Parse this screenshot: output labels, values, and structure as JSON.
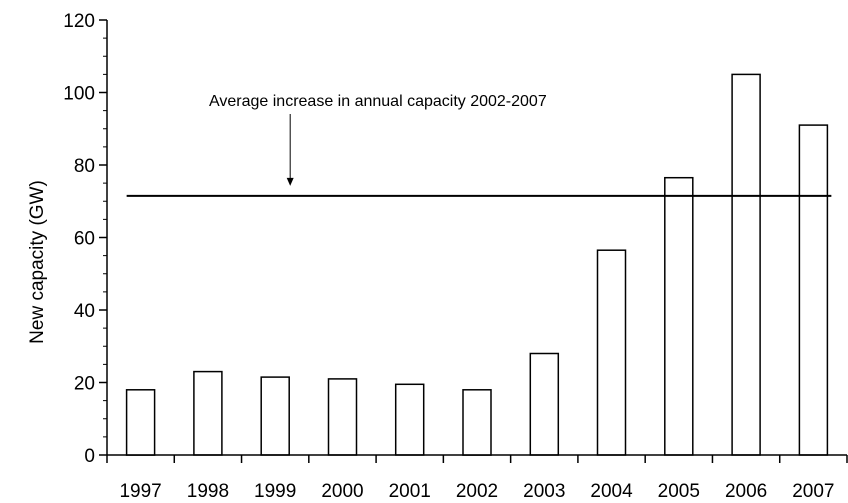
{
  "chart_data": {
    "type": "bar",
    "title": "",
    "xlabel": "",
    "ylabel": "New capacity (GW)",
    "categories": [
      "1997",
      "1998",
      "1999",
      "2000",
      "2001",
      "2002",
      "2003",
      "2004",
      "2005",
      "2006",
      "2007"
    ],
    "values": [
      18,
      23,
      21.5,
      21,
      19.5,
      18,
      28,
      56.5,
      76.5,
      105,
      91
    ],
    "ylim": [
      0,
      120
    ],
    "yticks": [
      "0",
      "20",
      "40",
      "60",
      "80",
      "100",
      "120"
    ],
    "minor_tick_step": 5,
    "grid": false,
    "bar_fill": "#ffffff",
    "bar_stroke": "#000000",
    "reference_line": {
      "value": 71.5,
      "from_category": "1997",
      "to_category": "2007"
    },
    "annotation": {
      "text": "Average increase in annual capacity 2002-2007",
      "arrow_category": "1999"
    }
  }
}
